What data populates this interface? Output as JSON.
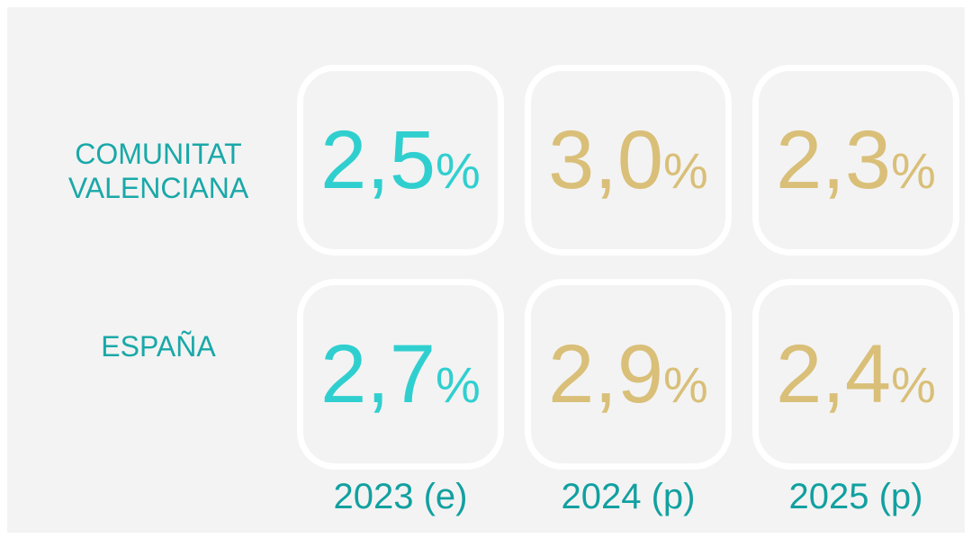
{
  "table": {
    "rows": [
      {
        "label": "COMUNITAT\nVALENCIANA",
        "cells": [
          {
            "number": "2,5",
            "unit": "%"
          },
          {
            "number": "3,0",
            "unit": "%"
          },
          {
            "number": "2,3",
            "unit": "%"
          }
        ]
      },
      {
        "label": "ESPAÑA",
        "cells": [
          {
            "number": "2,7",
            "unit": "%"
          },
          {
            "number": "2,9",
            "unit": "%"
          },
          {
            "number": "2,4",
            "unit": "%"
          }
        ]
      }
    ],
    "columns": [
      "2023 (e)",
      "2024 (p)",
      "2025 (p)"
    ]
  }
}
